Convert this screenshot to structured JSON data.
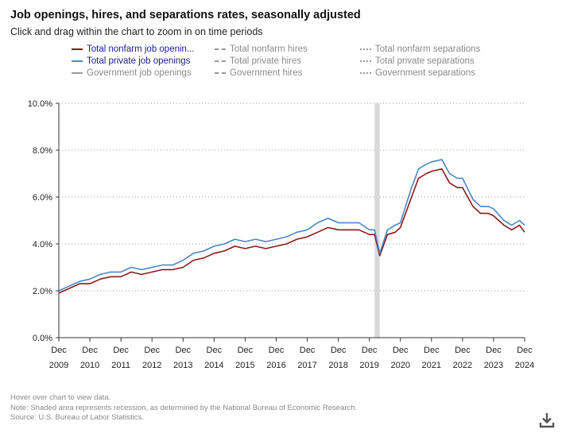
{
  "title": "Job openings, hires, and separations rates, seasonally adjusted",
  "subtitle": "Click and drag within the chart to zoom in on time periods",
  "legend": [
    {
      "label": "Total nonfarm job openin...",
      "style": "solid",
      "color": "#8b1a1a",
      "active": true
    },
    {
      "label": "Total nonfarm hires",
      "style": "dashed",
      "color": "#9a9a9a",
      "active": false
    },
    {
      "label": "Total nonfarm separations",
      "style": "dotted",
      "color": "#9a9a9a",
      "active": false
    },
    {
      "label": "Total private job openings",
      "style": "solid",
      "color": "#4a86c8",
      "active": true
    },
    {
      "label": "Total private hires",
      "style": "dashed",
      "color": "#9a9a9a",
      "active": false
    },
    {
      "label": "Total private separations",
      "style": "dotted",
      "color": "#9a9a9a",
      "active": false
    },
    {
      "label": "Government job openings",
      "style": "solid",
      "color": "#9a9a9a",
      "active": false
    },
    {
      "label": "Government hires",
      "style": "dashed",
      "color": "#9a9a9a",
      "active": false
    },
    {
      "label": "Government separations",
      "style": "dotted",
      "color": "#9a9a9a",
      "active": false
    }
  ],
  "footer": {
    "line1": "Hover over chart to view data.",
    "line2": "Note: Shaded area represents recession, as determined by the National Bureau of Economic Research.",
    "line3": "Source: U.S. Bureau of Labor Statistics."
  },
  "chart_data": {
    "type": "line",
    "title": "Job openings, hires, and separations rates, seasonally adjusted",
    "xlabel": "",
    "ylabel": "",
    "x_start": "2009-12",
    "x_end": "2024-12",
    "xlim": [
      2009.917,
      2024.917
    ],
    "ylim": [
      0,
      10
    ],
    "y_ticks": [
      0,
      2,
      4,
      6,
      8,
      10
    ],
    "y_tick_labels": [
      "0.0%",
      "2.0%",
      "4.0%",
      "6.0%",
      "8.0%",
      "10.0%"
    ],
    "x_ticks": [
      2009.917,
      2010.917,
      2011.917,
      2012.917,
      2013.917,
      2014.917,
      2015.917,
      2016.917,
      2017.917,
      2018.917,
      2019.917,
      2020.917,
      2021.917,
      2022.917,
      2023.917,
      2024.917
    ],
    "x_tick_labels": [
      [
        "Dec",
        "2009"
      ],
      [
        "Dec",
        "2010"
      ],
      [
        "Dec",
        "2011"
      ],
      [
        "Dec",
        "2012"
      ],
      [
        "Dec",
        "2013"
      ],
      [
        "Dec",
        "2014"
      ],
      [
        "Dec",
        "2015"
      ],
      [
        "Dec",
        "2016"
      ],
      [
        "Dec",
        "2017"
      ],
      [
        "Dec",
        "2018"
      ],
      [
        "Dec",
        "2019"
      ],
      [
        "Dec",
        "2020"
      ],
      [
        "Dec",
        "2021"
      ],
      [
        "Dec",
        "2022"
      ],
      [
        "Dec",
        "2023"
      ],
      [
        "Dec",
        "2024"
      ]
    ],
    "grid": "horizontal dotted",
    "recession": {
      "start": 2020.083,
      "end": 2020.25
    },
    "series": [
      {
        "name": "Total nonfarm job openings",
        "color": "#8b1a1a",
        "points": [
          [
            2009.917,
            1.9
          ],
          [
            2010.25,
            2.1
          ],
          [
            2010.583,
            2.3
          ],
          [
            2010.917,
            2.3
          ],
          [
            2011.25,
            2.5
          ],
          [
            2011.583,
            2.6
          ],
          [
            2011.917,
            2.6
          ],
          [
            2012.25,
            2.8
          ],
          [
            2012.583,
            2.7
          ],
          [
            2012.917,
            2.8
          ],
          [
            2013.25,
            2.9
          ],
          [
            2013.583,
            2.9
          ],
          [
            2013.917,
            3.0
          ],
          [
            2014.25,
            3.3
          ],
          [
            2014.583,
            3.4
          ],
          [
            2014.917,
            3.6
          ],
          [
            2015.25,
            3.7
          ],
          [
            2015.583,
            3.9
          ],
          [
            2015.917,
            3.8
          ],
          [
            2016.25,
            3.9
          ],
          [
            2016.583,
            3.8
          ],
          [
            2016.917,
            3.9
          ],
          [
            2017.25,
            4.0
          ],
          [
            2017.583,
            4.2
          ],
          [
            2017.917,
            4.3
          ],
          [
            2018.25,
            4.5
          ],
          [
            2018.583,
            4.7
          ],
          [
            2018.917,
            4.6
          ],
          [
            2019.25,
            4.6
          ],
          [
            2019.583,
            4.6
          ],
          [
            2019.917,
            4.4
          ],
          [
            2020.083,
            4.4
          ],
          [
            2020.25,
            3.5
          ],
          [
            2020.5,
            4.4
          ],
          [
            2020.75,
            4.5
          ],
          [
            2020.917,
            4.7
          ],
          [
            2021.25,
            5.9
          ],
          [
            2021.5,
            6.8
          ],
          [
            2021.75,
            7.0
          ],
          [
            2021.917,
            7.1
          ],
          [
            2022.25,
            7.2
          ],
          [
            2022.5,
            6.6
          ],
          [
            2022.75,
            6.4
          ],
          [
            2022.917,
            6.4
          ],
          [
            2023.25,
            5.6
          ],
          [
            2023.5,
            5.3
          ],
          [
            2023.75,
            5.3
          ],
          [
            2023.917,
            5.2
          ],
          [
            2024.25,
            4.8
          ],
          [
            2024.5,
            4.6
          ],
          [
            2024.75,
            4.8
          ],
          [
            2024.917,
            4.5
          ]
        ]
      },
      {
        "name": "Total private job openings",
        "color": "#4a86c8",
        "points": [
          [
            2009.917,
            2.0
          ],
          [
            2010.25,
            2.2
          ],
          [
            2010.583,
            2.4
          ],
          [
            2010.917,
            2.5
          ],
          [
            2011.25,
            2.7
          ],
          [
            2011.583,
            2.8
          ],
          [
            2011.917,
            2.8
          ],
          [
            2012.25,
            3.0
          ],
          [
            2012.583,
            2.9
          ],
          [
            2012.917,
            3.0
          ],
          [
            2013.25,
            3.1
          ],
          [
            2013.583,
            3.1
          ],
          [
            2013.917,
            3.3
          ],
          [
            2014.25,
            3.6
          ],
          [
            2014.583,
            3.7
          ],
          [
            2014.917,
            3.9
          ],
          [
            2015.25,
            4.0
          ],
          [
            2015.583,
            4.2
          ],
          [
            2015.917,
            4.1
          ],
          [
            2016.25,
            4.2
          ],
          [
            2016.583,
            4.1
          ],
          [
            2016.917,
            4.2
          ],
          [
            2017.25,
            4.3
          ],
          [
            2017.583,
            4.5
          ],
          [
            2017.917,
            4.6
          ],
          [
            2018.25,
            4.9
          ],
          [
            2018.583,
            5.1
          ],
          [
            2018.917,
            4.9
          ],
          [
            2019.25,
            4.9
          ],
          [
            2019.583,
            4.9
          ],
          [
            2019.917,
            4.6
          ],
          [
            2020.083,
            4.6
          ],
          [
            2020.25,
            3.6
          ],
          [
            2020.5,
            4.6
          ],
          [
            2020.75,
            4.8
          ],
          [
            2020.917,
            4.9
          ],
          [
            2021.25,
            6.3
          ],
          [
            2021.5,
            7.2
          ],
          [
            2021.75,
            7.4
          ],
          [
            2021.917,
            7.5
          ],
          [
            2022.25,
            7.6
          ],
          [
            2022.5,
            7.0
          ],
          [
            2022.75,
            6.8
          ],
          [
            2022.917,
            6.8
          ],
          [
            2023.25,
            5.9
          ],
          [
            2023.5,
            5.6
          ],
          [
            2023.75,
            5.6
          ],
          [
            2023.917,
            5.5
          ],
          [
            2024.25,
            5.0
          ],
          [
            2024.5,
            4.8
          ],
          [
            2024.75,
            5.0
          ],
          [
            2024.917,
            4.8
          ]
        ]
      }
    ]
  }
}
